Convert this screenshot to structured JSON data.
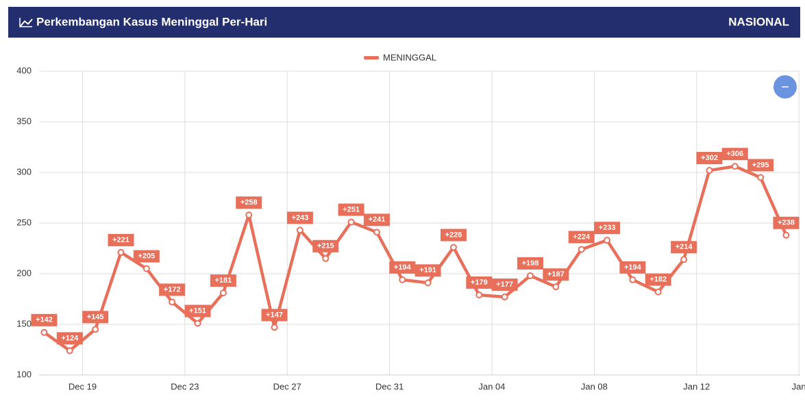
{
  "header": {
    "title": "Perkembangan Kasus Meninggal Per-Hari",
    "region": "NASIONAL"
  },
  "chart_data": {
    "type": "line",
    "series": [
      {
        "name": "MENINGGAL",
        "color": "#e8705a",
        "values": [
          142,
          124,
          145,
          221,
          205,
          172,
          151,
          181,
          258,
          147,
          243,
          215,
          251,
          241,
          194,
          191,
          226,
          179,
          177,
          198,
          187,
          224,
          233,
          194,
          182,
          214,
          302,
          306,
          295,
          238
        ],
        "value_labels": [
          "+142",
          "+124",
          "+145",
          "+221",
          "+205",
          "+172",
          "+151",
          "+181",
          "+258",
          "+147",
          "+243",
          "+215",
          "+251",
          "+241",
          "+194",
          "+191",
          "+226",
          "+179",
          "+177",
          "+198",
          "+187",
          "+224",
          "+233",
          "+194",
          "+182",
          "+214",
          "+302",
          "+306",
          "+295",
          "+238"
        ]
      }
    ],
    "xlim": [
      -0.2,
      29.55
    ],
    "xticks": [
      {
        "value": 1.5,
        "label": "Dec 19"
      },
      {
        "value": 5.5,
        "label": "Dec 23"
      },
      {
        "value": 9.5,
        "label": "Dec 27"
      },
      {
        "value": 13.5,
        "label": "Dec 31"
      },
      {
        "value": 17.5,
        "label": "Jan 04"
      },
      {
        "value": 21.5,
        "label": "Jan 08"
      },
      {
        "value": 25.5,
        "label": "Jan 12"
      },
      {
        "value": 29.5,
        "label": "Jan"
      }
    ],
    "ylim": [
      100,
      400
    ],
    "yticks": [
      100,
      150,
      200,
      250,
      300,
      350,
      400
    ],
    "grid": true
  }
}
